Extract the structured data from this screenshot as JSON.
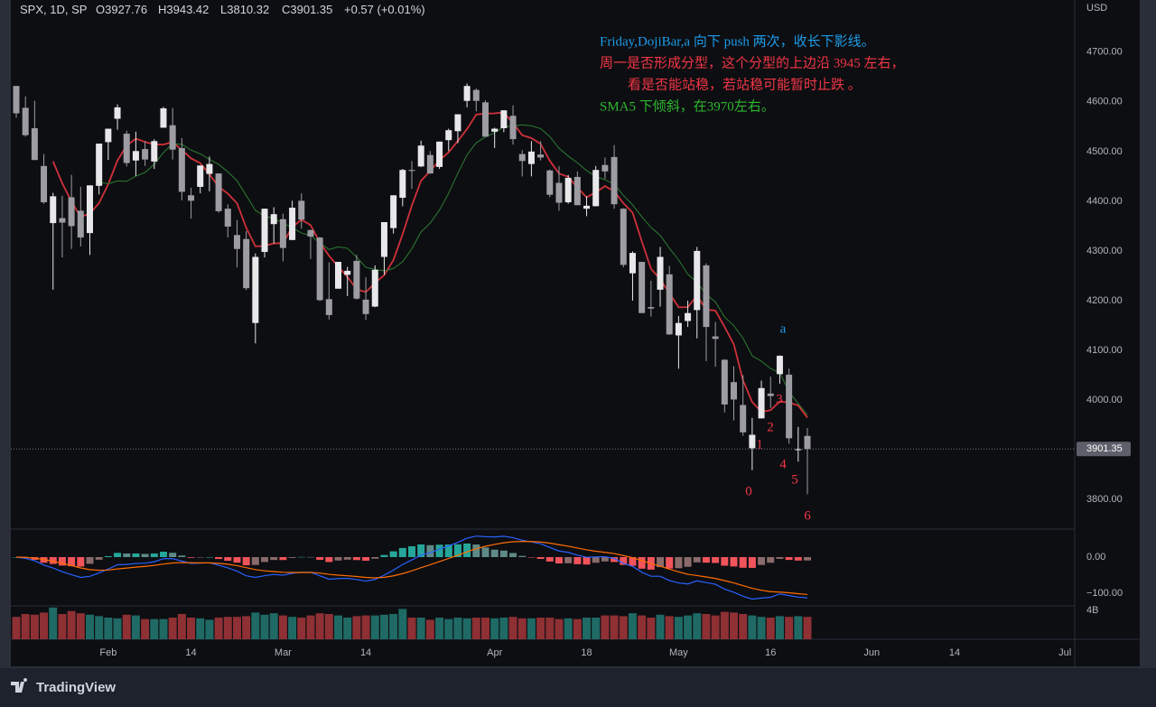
{
  "chart_data": {
    "type": "candlestick",
    "legend": {
      "symbol": "SPX, 1D, SP",
      "open": "O3927.76",
      "high": "H3943.42",
      "low": "L3810.32",
      "close": "C3901.35",
      "change": "+0.57 (+0.01%)"
    },
    "currency": "USD",
    "annotations": [
      {
        "text": "Friday,DojiBar,a 向下 push  两次，收长下影线。",
        "color": "#1e9ce8"
      },
      {
        "text": "周一是否形成分型，这个分型的上边沿 3945 左右，",
        "color": "#f23645"
      },
      {
        "text": "看是否能站稳，若站稳可能暂时止跌 。",
        "color": "#f23645"
      },
      {
        "text": "SMA5 下倾斜，在3970左右。",
        "color": "#2eb82e"
      }
    ],
    "wave_labels": [
      {
        "text": "0",
        "color": "#f23645"
      },
      {
        "text": "1",
        "color": "#f23645"
      },
      {
        "text": "2",
        "color": "#f23645"
      },
      {
        "text": "3",
        "color": "#f23645"
      },
      {
        "text": "4",
        "color": "#f23645"
      },
      {
        "text": "5",
        "color": "#f23645"
      },
      {
        "text": "6",
        "color": "#f23645"
      },
      {
        "text": "a",
        "color": "#1e9ce8"
      }
    ],
    "open": [
      4632,
      4588,
      4547,
      4471,
      4356,
      4366,
      4408,
      4381,
      4336,
      4431,
      4519,
      4566,
      4536,
      4482,
      4505,
      4480,
      4548,
      4553,
      4507,
      4412,
      4429,
      4455,
      4456,
      4385,
      4332,
      4324,
      4155,
      4298,
      4354,
      4364,
      4322,
      4401,
      4342,
      4327,
      4203,
      4224,
      4252,
      4280,
      4202,
      4188,
      4288,
      4346,
      4407,
      4463,
      4470,
      4493,
      4469,
      4523,
      4541,
      4602,
      4624,
      4599,
      4540,
      4547,
      4572,
      4495,
      4475,
      4494,
      4462,
      4437,
      4398,
      4449,
      4385,
      4390,
      4473,
      4489,
      4385,
      4255,
      4278,
      4187,
      4222,
      4253,
      4130,
      4159,
      4181,
      4271,
      4128,
      4081,
      4036,
      3990,
      3903,
      3963,
      4013,
      4052,
      4051,
      3900,
      3927.76
    ],
    "high": [
      4632,
      4611,
      4602,
      4495,
      4417,
      4411,
      4453,
      4429,
      4432,
      4516,
      4546,
      4595,
      4542,
      4540,
      4521,
      4525,
      4590,
      4588,
      4527,
      4427,
      4472,
      4490,
      4456,
      4394,
      4362,
      4340,
      4295,
      4385,
      4388,
      4375,
      4401,
      4416,
      4343,
      4328,
      4277,
      4277,
      4268,
      4292,
      4247,
      4271,
      4358,
      4412,
      4465,
      4481,
      4522,
      4501,
      4520,
      4546,
      4575,
      4637,
      4627,
      4603,
      4548,
      4583,
      4593,
      4503,
      4521,
      4521,
      4464,
      4471,
      4453,
      4460,
      4410,
      4471,
      4488,
      4513,
      4386,
      4299,
      4278,
      4240,
      4308,
      4270,
      4169,
      4200,
      4308,
      4275,
      4157,
      4082,
      4068,
      4050,
      3964,
      4039,
      4047,
      4090,
      4063,
      3946,
      3943.42
    ],
    "low": [
      4568,
      4530,
      4483,
      4395,
      4222,
      4287,
      4304,
      4309,
      4292,
      4414,
      4483,
      4544,
      4470,
      4451,
      4471,
      4465,
      4548,
      4484,
      4402,
      4365,
      4416,
      4420,
      4377,
      4327,
      4267,
      4221,
      4114,
      4287,
      4315,
      4279,
      4322,
      4345,
      4284,
      4199,
      4162,
      4224,
      4209,
      4202,
      4161,
      4187,
      4252,
      4335,
      4390,
      4425,
      4469,
      4455,
      4465,
      4501,
      4517,
      4589,
      4581,
      4530,
      4507,
      4539,
      4514,
      4450,
      4450,
      4482,
      4408,
      4381,
      4395,
      4392,
      4370,
      4390,
      4445,
      4385,
      4267,
      4200,
      4175,
      4168,
      4188,
      4131,
      4063,
      4147,
      4124,
      4078,
      4067,
      3975,
      3959,
      3928,
      3859,
      3963,
      3984,
      4033,
      3912,
      3876,
      3810.32
    ],
    "close": [
      4577,
      4533,
      4483,
      4398,
      4410,
      4357,
      4350,
      4327,
      4432,
      4516,
      4546,
      4589,
      4477,
      4501,
      4484,
      4521,
      4587,
      4504,
      4419,
      4401,
      4472,
      4475,
      4380,
      4349,
      4304,
      4225,
      4288,
      4385,
      4374,
      4306,
      4387,
      4363,
      4329,
      4201,
      4171,
      4278,
      4260,
      4204,
      4173,
      4262,
      4358,
      4412,
      4463,
      4461,
      4512,
      4456,
      4520,
      4543,
      4575,
      4632,
      4602,
      4530,
      4546,
      4583,
      4525,
      4481,
      4500,
      4488,
      4413,
      4397,
      4447,
      4392,
      4391,
      4463,
      4460,
      4394,
      4272,
      4296,
      4175,
      4184,
      4288,
      4132,
      4155,
      4175,
      4300,
      4147,
      4123,
      3991,
      4001,
      3935,
      3930,
      4024,
      4008,
      4089,
      3923,
      3901,
      3901.35
    ],
    "up_color": "#e8e8ea",
    "down_color": "#9c9ca2",
    "ylim": [
      3742,
      4805
    ],
    "yticks": [
      {
        "value": 3800,
        "label": "3800.00"
      },
      {
        "value": 3900,
        "label": "3900.00"
      },
      {
        "value": 4000,
        "label": "4000.00"
      },
      {
        "value": 4100,
        "label": "4100.00"
      },
      {
        "value": 4200,
        "label": "4200.00"
      },
      {
        "value": 4300,
        "label": "4300.00"
      },
      {
        "value": 4400,
        "label": "4400.00"
      },
      {
        "value": 4500,
        "label": "4500.00"
      },
      {
        "value": 4600,
        "label": "4600.00"
      },
      {
        "value": 4700,
        "label": "4700.00"
      }
    ],
    "last_price": 3901.35,
    "xticks": [
      {
        "value": 10,
        "label": "Feb"
      },
      {
        "value": 19,
        "label": "14"
      },
      {
        "value": 29,
        "label": "Mar"
      },
      {
        "value": 38,
        "label": "14"
      },
      {
        "value": 52,
        "label": "Apr"
      },
      {
        "value": 62,
        "label": "18"
      },
      {
        "value": 72,
        "label": "May"
      },
      {
        "value": 82,
        "label": "16"
      },
      {
        "value": 93,
        "label": "Jun"
      },
      {
        "value": 102,
        "label": "14"
      },
      {
        "value": 114,
        "label": "Jul"
      }
    ],
    "moving_averages": [
      {
        "period": 5,
        "color": "#d0313a"
      },
      {
        "period": 10,
        "color": "#2e7d32"
      }
    ],
    "macd": {
      "fast": 12,
      "slow": 26,
      "signal": 9,
      "macd_color": "#2962ff",
      "signal_color": "#ff6d00",
      "hist_colors": [
        "#26a69a",
        "#5e8a86",
        "#8a6a6a",
        "#f2545b"
      ],
      "ylim": [
        -132.5,
        75
      ],
      "yticks": [
        {
          "value": 0,
          "label": "0.00"
        },
        {
          "value": -100,
          "label": "−100.00"
        }
      ]
    },
    "volume": {
      "values": [
        3.1,
        3.5,
        3.4,
        3.7,
        4.4,
        3.5,
        3.9,
        3.6,
        3.4,
        3.2,
        3.0,
        2.9,
        3.4,
        3.3,
        2.8,
        2.8,
        2.8,
        3.0,
        3.5,
        3.0,
        2.9,
        2.7,
        3.0,
        3.1,
        3.1,
        3.2,
        3.7,
        3.4,
        3.6,
        3.3,
        3.1,
        3.0,
        3.3,
        3.6,
        3.5,
        3.3,
        3.0,
        3.2,
        3.3,
        3.3,
        3.4,
        3.5,
        4.2,
        3.0,
        3.0,
        2.7,
        3.0,
        2.8,
        3.0,
        2.9,
        3.0,
        3.0,
        2.9,
        3.0,
        3.1,
        2.9,
        2.9,
        3.0,
        3.0,
        2.8,
        2.9,
        2.8,
        3.0,
        3.0,
        3.3,
        3.3,
        3.2,
        3.6,
        3.3,
        3.0,
        3.4,
        3.2,
        3.1,
        3.3,
        3.6,
        3.5,
        3.3,
        3.8,
        3.7,
        3.5,
        3.3,
        3.1,
        3.0,
        3.2,
        3.1,
        3.2,
        3.1
      ],
      "ylim": [
        0,
        4.5
      ],
      "yticks": [
        {
          "value": 4,
          "label": "4B"
        }
      ],
      "up_color": "#1f6a65",
      "down_color": "#8e3034"
    }
  },
  "footer": {
    "brand": "TradingView"
  }
}
